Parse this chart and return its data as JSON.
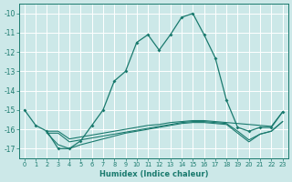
{
  "xlabel": "Humidex (Indice chaleur)",
  "bg_color": "#cce8e8",
  "grid_color": "#ffffff",
  "line_color": "#1a7a6e",
  "xlim": [
    -0.5,
    23.5
  ],
  "ylim": [
    -17.5,
    -9.5
  ],
  "xticks": [
    0,
    1,
    2,
    3,
    4,
    5,
    6,
    7,
    8,
    9,
    10,
    11,
    12,
    13,
    14,
    15,
    16,
    17,
    18,
    19,
    20,
    21,
    22,
    23
  ],
  "yticks": [
    -10,
    -11,
    -12,
    -13,
    -14,
    -15,
    -16,
    -17
  ],
  "series": [
    {
      "x": [
        0,
        1,
        2,
        3,
        4,
        5,
        6,
        7,
        8,
        9,
        10,
        11,
        12,
        13,
        14,
        15,
        16,
        17,
        18,
        19,
        20,
        21,
        22,
        23
      ],
      "y": [
        -15.0,
        -15.8,
        -16.1,
        -17.0,
        -17.0,
        -16.6,
        -15.8,
        -15.0,
        -13.5,
        -13.0,
        -11.5,
        -11.1,
        -11.9,
        -11.1,
        -10.2,
        -10.0,
        -11.1,
        -12.3,
        -14.5,
        -15.9,
        -16.1,
        -15.9,
        -15.9,
        -15.1
      ],
      "marker": true
    },
    {
      "x": [
        2,
        3,
        4,
        5,
        6,
        7,
        8,
        9,
        10,
        11,
        12,
        13,
        14,
        15,
        16,
        17,
        18,
        19,
        20,
        21,
        22,
        23
      ],
      "y": [
        -16.1,
        -16.1,
        -16.5,
        -16.4,
        -16.3,
        -16.2,
        -16.1,
        -16.0,
        -15.9,
        -15.8,
        -15.75,
        -15.65,
        -15.6,
        -15.55,
        -15.55,
        -15.6,
        -15.65,
        -15.7,
        -15.75,
        -15.8,
        -15.85,
        -15.1
      ],
      "marker": false
    },
    {
      "x": [
        2,
        3,
        4,
        5,
        6,
        7,
        8,
        9,
        10,
        11,
        12,
        13,
        14,
        15,
        16,
        17,
        18,
        19,
        20,
        21,
        22,
        23
      ],
      "y": [
        -16.2,
        -16.2,
        -16.65,
        -16.55,
        -16.45,
        -16.35,
        -16.25,
        -16.15,
        -16.05,
        -15.95,
        -15.85,
        -15.75,
        -15.65,
        -15.6,
        -15.6,
        -15.65,
        -15.7,
        -16.1,
        -16.55,
        -16.25,
        -16.1,
        -15.6
      ],
      "marker": false
    },
    {
      "x": [
        2,
        3,
        4,
        5,
        6,
        7,
        8,
        9,
        10,
        11,
        12,
        13,
        14,
        15,
        16,
        17,
        18,
        19,
        20,
        21,
        22,
        23
      ],
      "y": [
        -16.2,
        -16.8,
        -17.0,
        -16.8,
        -16.65,
        -16.5,
        -16.35,
        -16.2,
        -16.1,
        -16.0,
        -15.9,
        -15.8,
        -15.7,
        -15.65,
        -15.65,
        -15.7,
        -15.75,
        -16.2,
        -16.65,
        -16.25,
        -16.1,
        -15.6
      ],
      "marker": false
    }
  ]
}
